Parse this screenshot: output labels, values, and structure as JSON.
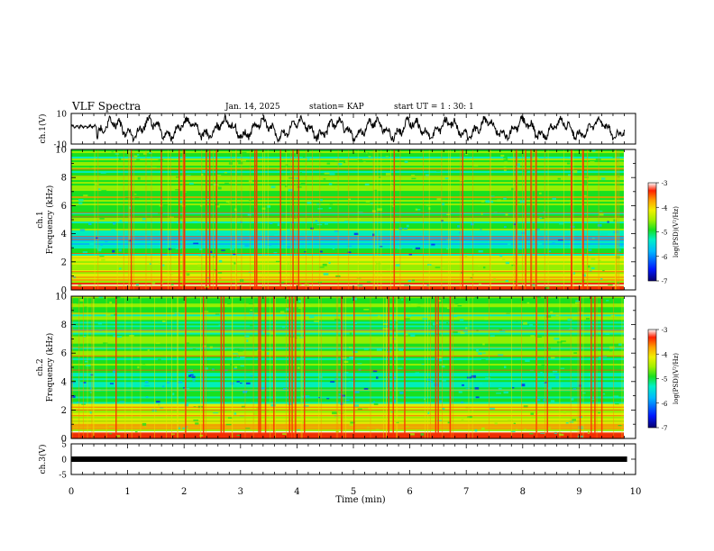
{
  "header": {
    "title": "VLF Spectra",
    "date": "Jan. 14, 2025",
    "station": "station= KAP",
    "start": "start UT =  1 : 30: 1"
  },
  "colors": {
    "spectrum_scale": [
      "#08006e",
      "#0018ff",
      "#00b8ff",
      "#00f0c8",
      "#18e020",
      "#a0f000",
      "#f0f000",
      "#ffa000",
      "#ff2000",
      "#ffffff"
    ]
  },
  "chart_data": [
    {
      "type": "line",
      "name": "ch1-waveform",
      "ylabel": "ch.1(V)",
      "ylim": [
        -10,
        10
      ],
      "yticks": [
        "10",
        "-10"
      ],
      "xlim": [
        0,
        10
      ],
      "description_series": "voltage trace oscillating between approx -8 and +8 V"
    },
    {
      "type": "heatmap",
      "name": "ch1-spectrogram",
      "ylabel": "Frequency (kHz)",
      "channel_label": "ch.1",
      "ylim": [
        0,
        10
      ],
      "yticks": [
        "0",
        "2",
        "4",
        "6",
        "8",
        "10"
      ],
      "xlim": [
        0,
        10
      ],
      "colorbar": {
        "label": "log(PSD)(V²/Hz)",
        "range": [
          -7,
          -3
        ],
        "ticks": [
          "-3",
          "-4",
          "-5",
          "-6",
          "-7"
        ]
      }
    },
    {
      "type": "heatmap",
      "name": "ch2-spectrogram",
      "ylabel": "Frequency (kHz)",
      "channel_label": "ch.2",
      "ylim": [
        0,
        10
      ],
      "yticks": [
        "0",
        "2",
        "4",
        "6",
        "8",
        "10"
      ],
      "xlim": [
        0,
        10
      ],
      "colorbar": {
        "label": "log(PSD)(V²/Hz)",
        "range": [
          -7,
          -3
        ],
        "ticks": [
          "-3",
          "-4",
          "-5",
          "-6",
          "-7"
        ]
      }
    },
    {
      "type": "line",
      "name": "ch3-signal",
      "ylabel": "ch.3(V)",
      "ylim": [
        -5,
        5
      ],
      "yticks": [
        "5",
        "0",
        "-5"
      ],
      "xlim": [
        0,
        10
      ],
      "constant_value": 0
    }
  ],
  "xaxis": {
    "label": "Time (min)",
    "ticks": [
      "0",
      "1",
      "2",
      "3",
      "4",
      "5",
      "6",
      "7",
      "8",
      "9",
      "10"
    ]
  }
}
